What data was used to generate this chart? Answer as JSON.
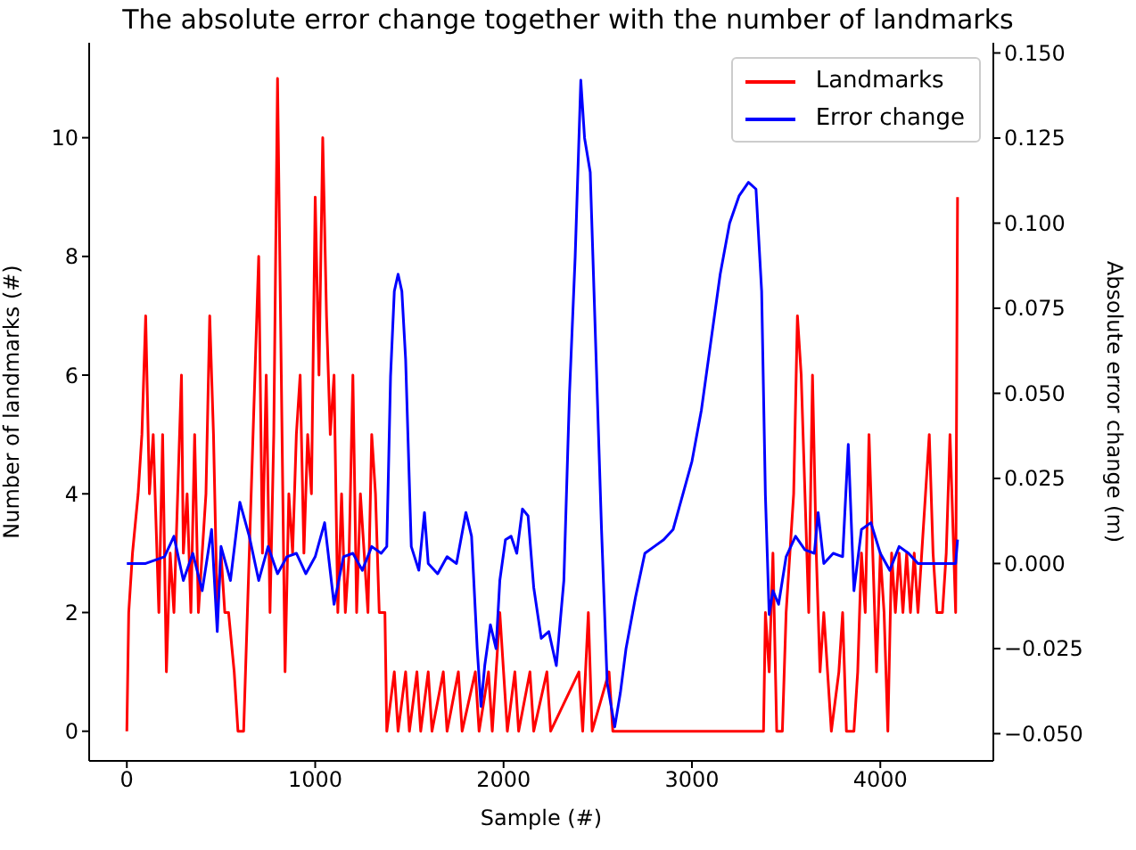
{
  "chart_data": {
    "type": "line",
    "title": "The absolute error change together with the number of landmarks",
    "xlabel": "Sample (#)",
    "ylabel": "Number of landmarks (#)",
    "y2label": "Absolute error change (m)",
    "legend": "top right",
    "grid": false,
    "xlim": [
      -200,
      4600
    ],
    "xticks": [
      0,
      1000,
      2000,
      3000,
      4000
    ],
    "ylim": [
      -0.5,
      11.6
    ],
    "yticks": [
      0,
      2,
      4,
      6,
      8,
      10
    ],
    "y2lim": [
      -0.058,
      0.153
    ],
    "y2ticks": [
      {
        "value": -0.05,
        "label": "−0.050"
      },
      {
        "value": -0.025,
        "label": "−0.025"
      },
      {
        "value": 0,
        "label": "0.000"
      },
      {
        "value": 0.025,
        "label": "0.025"
      },
      {
        "value": 0.05,
        "label": "0.050"
      },
      {
        "value": 0.075,
        "label": "0.075"
      },
      {
        "value": 0.1,
        "label": "0.100"
      },
      {
        "value": 0.125,
        "label": "0.125"
      },
      {
        "value": 0.15,
        "label": "0.150"
      }
    ],
    "series": [
      {
        "name": "Landmarks",
        "color": "#ff0000",
        "x": [
          0,
          10,
          30,
          60,
          80,
          100,
          120,
          140,
          160,
          170,
          190,
          210,
          230,
          250,
          270,
          290,
          300,
          320,
          340,
          360,
          380,
          400,
          420,
          440,
          460,
          480,
          500,
          520,
          540,
          570,
          590,
          620,
          640,
          660,
          680,
          700,
          720,
          740,
          760,
          780,
          800,
          820,
          840,
          860,
          880,
          900,
          920,
          940,
          960,
          980,
          1000,
          1020,
          1040,
          1060,
          1080,
          1100,
          1120,
          1140,
          1160,
          1180,
          1200,
          1220,
          1240,
          1260,
          1280,
          1300,
          1320,
          1340,
          1370,
          1380,
          1420,
          1440,
          1480,
          1500,
          1540,
          1560,
          1600,
          1620,
          1680,
          1700,
          1760,
          1780,
          1850,
          1870,
          1920,
          1940,
          1980,
          2000,
          2020,
          2060,
          2080,
          2140,
          2160,
          2230,
          2250,
          2400,
          2420,
          2450,
          2470,
          2560,
          2580,
          3380,
          3390,
          3410,
          3430,
          3450,
          3480,
          3500,
          3520,
          3540,
          3560,
          3580,
          3600,
          3620,
          3640,
          3660,
          3680,
          3700,
          3720,
          3740,
          3780,
          3800,
          3820,
          3860,
          3880,
          3900,
          3920,
          3940,
          3960,
          3980,
          4000,
          4020,
          4040,
          4060,
          4080,
          4100,
          4120,
          4140,
          4160,
          4180,
          4200,
          4220,
          4240,
          4260,
          4280,
          4300,
          4330,
          4350,
          4370,
          4390,
          4400,
          4410
        ],
        "values": [
          0,
          2,
          3,
          4,
          5,
          7,
          4,
          5,
          3,
          2,
          5,
          1,
          3,
          2,
          4,
          6,
          3,
          4,
          2,
          5,
          2,
          3,
          4,
          7,
          5,
          2,
          3,
          2,
          2,
          1,
          0,
          0,
          2,
          4,
          6,
          8,
          3,
          6,
          2,
          5,
          11,
          6,
          1,
          4,
          3,
          5,
          6,
          3,
          5,
          4,
          9,
          6,
          10,
          7,
          5,
          6,
          2,
          4,
          2,
          3,
          6,
          2,
          4,
          3,
          2,
          5,
          4,
          2,
          2,
          0,
          1,
          0,
          1,
          0,
          1,
          0,
          1,
          0,
          1,
          0,
          1,
          0,
          1,
          0,
          1,
          0,
          2,
          1,
          0,
          1,
          0,
          1,
          0,
          1,
          0,
          1,
          0,
          2,
          0,
          1,
          0,
          0,
          2,
          1,
          3,
          0,
          0,
          2,
          3,
          4,
          7,
          6,
          4,
          2,
          6,
          3,
          1,
          2,
          1,
          0,
          1,
          2,
          0,
          0,
          1,
          3,
          2,
          5,
          3,
          1,
          3,
          2,
          0,
          3,
          2,
          3,
          2,
          3,
          2,
          3,
          2,
          3,
          4,
          5,
          3,
          2,
          2,
          3,
          5,
          3,
          2,
          9
        ]
      },
      {
        "name": "Error change",
        "color": "#0000ff",
        "axis": "y2",
        "x": [
          0,
          100,
          200,
          250,
          300,
          350,
          400,
          450,
          480,
          500,
          550,
          600,
          650,
          700,
          750,
          800,
          850,
          900,
          950,
          1000,
          1050,
          1100,
          1150,
          1200,
          1250,
          1300,
          1350,
          1380,
          1400,
          1420,
          1440,
          1460,
          1480,
          1510,
          1550,
          1580,
          1600,
          1650,
          1700,
          1750,
          1800,
          1830,
          1860,
          1880,
          1900,
          1930,
          1960,
          1980,
          2010,
          2040,
          2070,
          2100,
          2130,
          2160,
          2200,
          2240,
          2280,
          2320,
          2350,
          2380,
          2410,
          2430,
          2460,
          2480,
          2520,
          2550,
          2590,
          2620,
          2650,
          2700,
          2750,
          2800,
          2850,
          2900,
          2950,
          3000,
          3050,
          3100,
          3150,
          3200,
          3250,
          3300,
          3340,
          3370,
          3390,
          3410,
          3430,
          3460,
          3480,
          3500,
          3550,
          3600,
          3650,
          3670,
          3700,
          3750,
          3800,
          3830,
          3860,
          3900,
          3950,
          4000,
          4050,
          4100,
          4150,
          4200,
          4300,
          4400,
          4410
        ],
        "values": [
          0,
          0,
          0.002,
          0.008,
          -0.005,
          0.003,
          -0.008,
          0.01,
          -0.02,
          0.005,
          -0.005,
          0.018,
          0.008,
          -0.005,
          0.005,
          -0.003,
          0.002,
          0.003,
          -0.003,
          0.002,
          0.012,
          -0.012,
          0.002,
          0.003,
          -0.002,
          0.005,
          0.003,
          0.005,
          0.055,
          0.08,
          0.085,
          0.08,
          0.06,
          0.005,
          -0.002,
          0.015,
          0,
          -0.003,
          0.002,
          0,
          0.015,
          0.008,
          -0.025,
          -0.042,
          -0.03,
          -0.018,
          -0.025,
          -0.005,
          0.007,
          0.008,
          0.003,
          0.016,
          0.014,
          -0.007,
          -0.022,
          -0.02,
          -0.03,
          -0.005,
          0.05,
          0.09,
          0.142,
          0.125,
          0.115,
          0.08,
          0.01,
          -0.035,
          -0.048,
          -0.038,
          -0.025,
          -0.01,
          0.003,
          0.005,
          0.007,
          0.01,
          0.02,
          0.03,
          0.045,
          0.065,
          0.085,
          0.1,
          0.108,
          0.112,
          0.11,
          0.08,
          0.02,
          -0.015,
          -0.008,
          -0.012,
          -0.005,
          0.002,
          0.008,
          0.004,
          0.003,
          0.015,
          0,
          0.003,
          0.002,
          0.035,
          -0.008,
          0.01,
          0.012,
          0.003,
          -0.002,
          0.005,
          0.003,
          0,
          0,
          0,
          0.007
        ]
      }
    ]
  }
}
